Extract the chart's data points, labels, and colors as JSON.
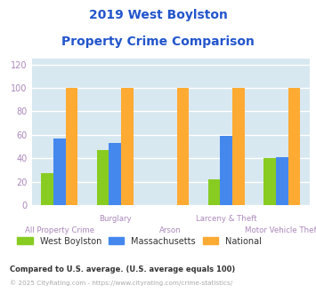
{
  "title_line1": "2019 West Boylston",
  "title_line2": "Property Crime Comparison",
  "title_color": "#2255cc",
  "categories": [
    "All Property Crime",
    "Burglary",
    "Arson",
    "Larceny & Theft",
    "Motor Vehicle Theft"
  ],
  "west_boylston": [
    27,
    47,
    0,
    22,
    40
  ],
  "massachusetts": [
    57,
    53,
    0,
    59,
    41
  ],
  "national": [
    100,
    100,
    100,
    100,
    100
  ],
  "colors": {
    "west_boylston": "#88cc22",
    "massachusetts": "#4488ee",
    "national": "#ffaa33"
  },
  "ylabel_ticks": [
    0,
    20,
    40,
    60,
    80,
    100,
    120
  ],
  "ylim": [
    0,
    125
  ],
  "plot_bg_color": "#d8e8f0",
  "grid_color": "#ffffff",
  "tick_color": "#aa88bb",
  "legend_labels": [
    "West Boylston",
    "Massachusetts",
    "National"
  ],
  "footnote1": "Compared to U.S. average. (U.S. average equals 100)",
  "footnote2": "© 2025 CityRating.com - https://www.cityrating.com/crime-statistics/",
  "footnote1_color": "#333333",
  "footnote2_color": "#aaaaaa",
  "bar_width": 0.22
}
